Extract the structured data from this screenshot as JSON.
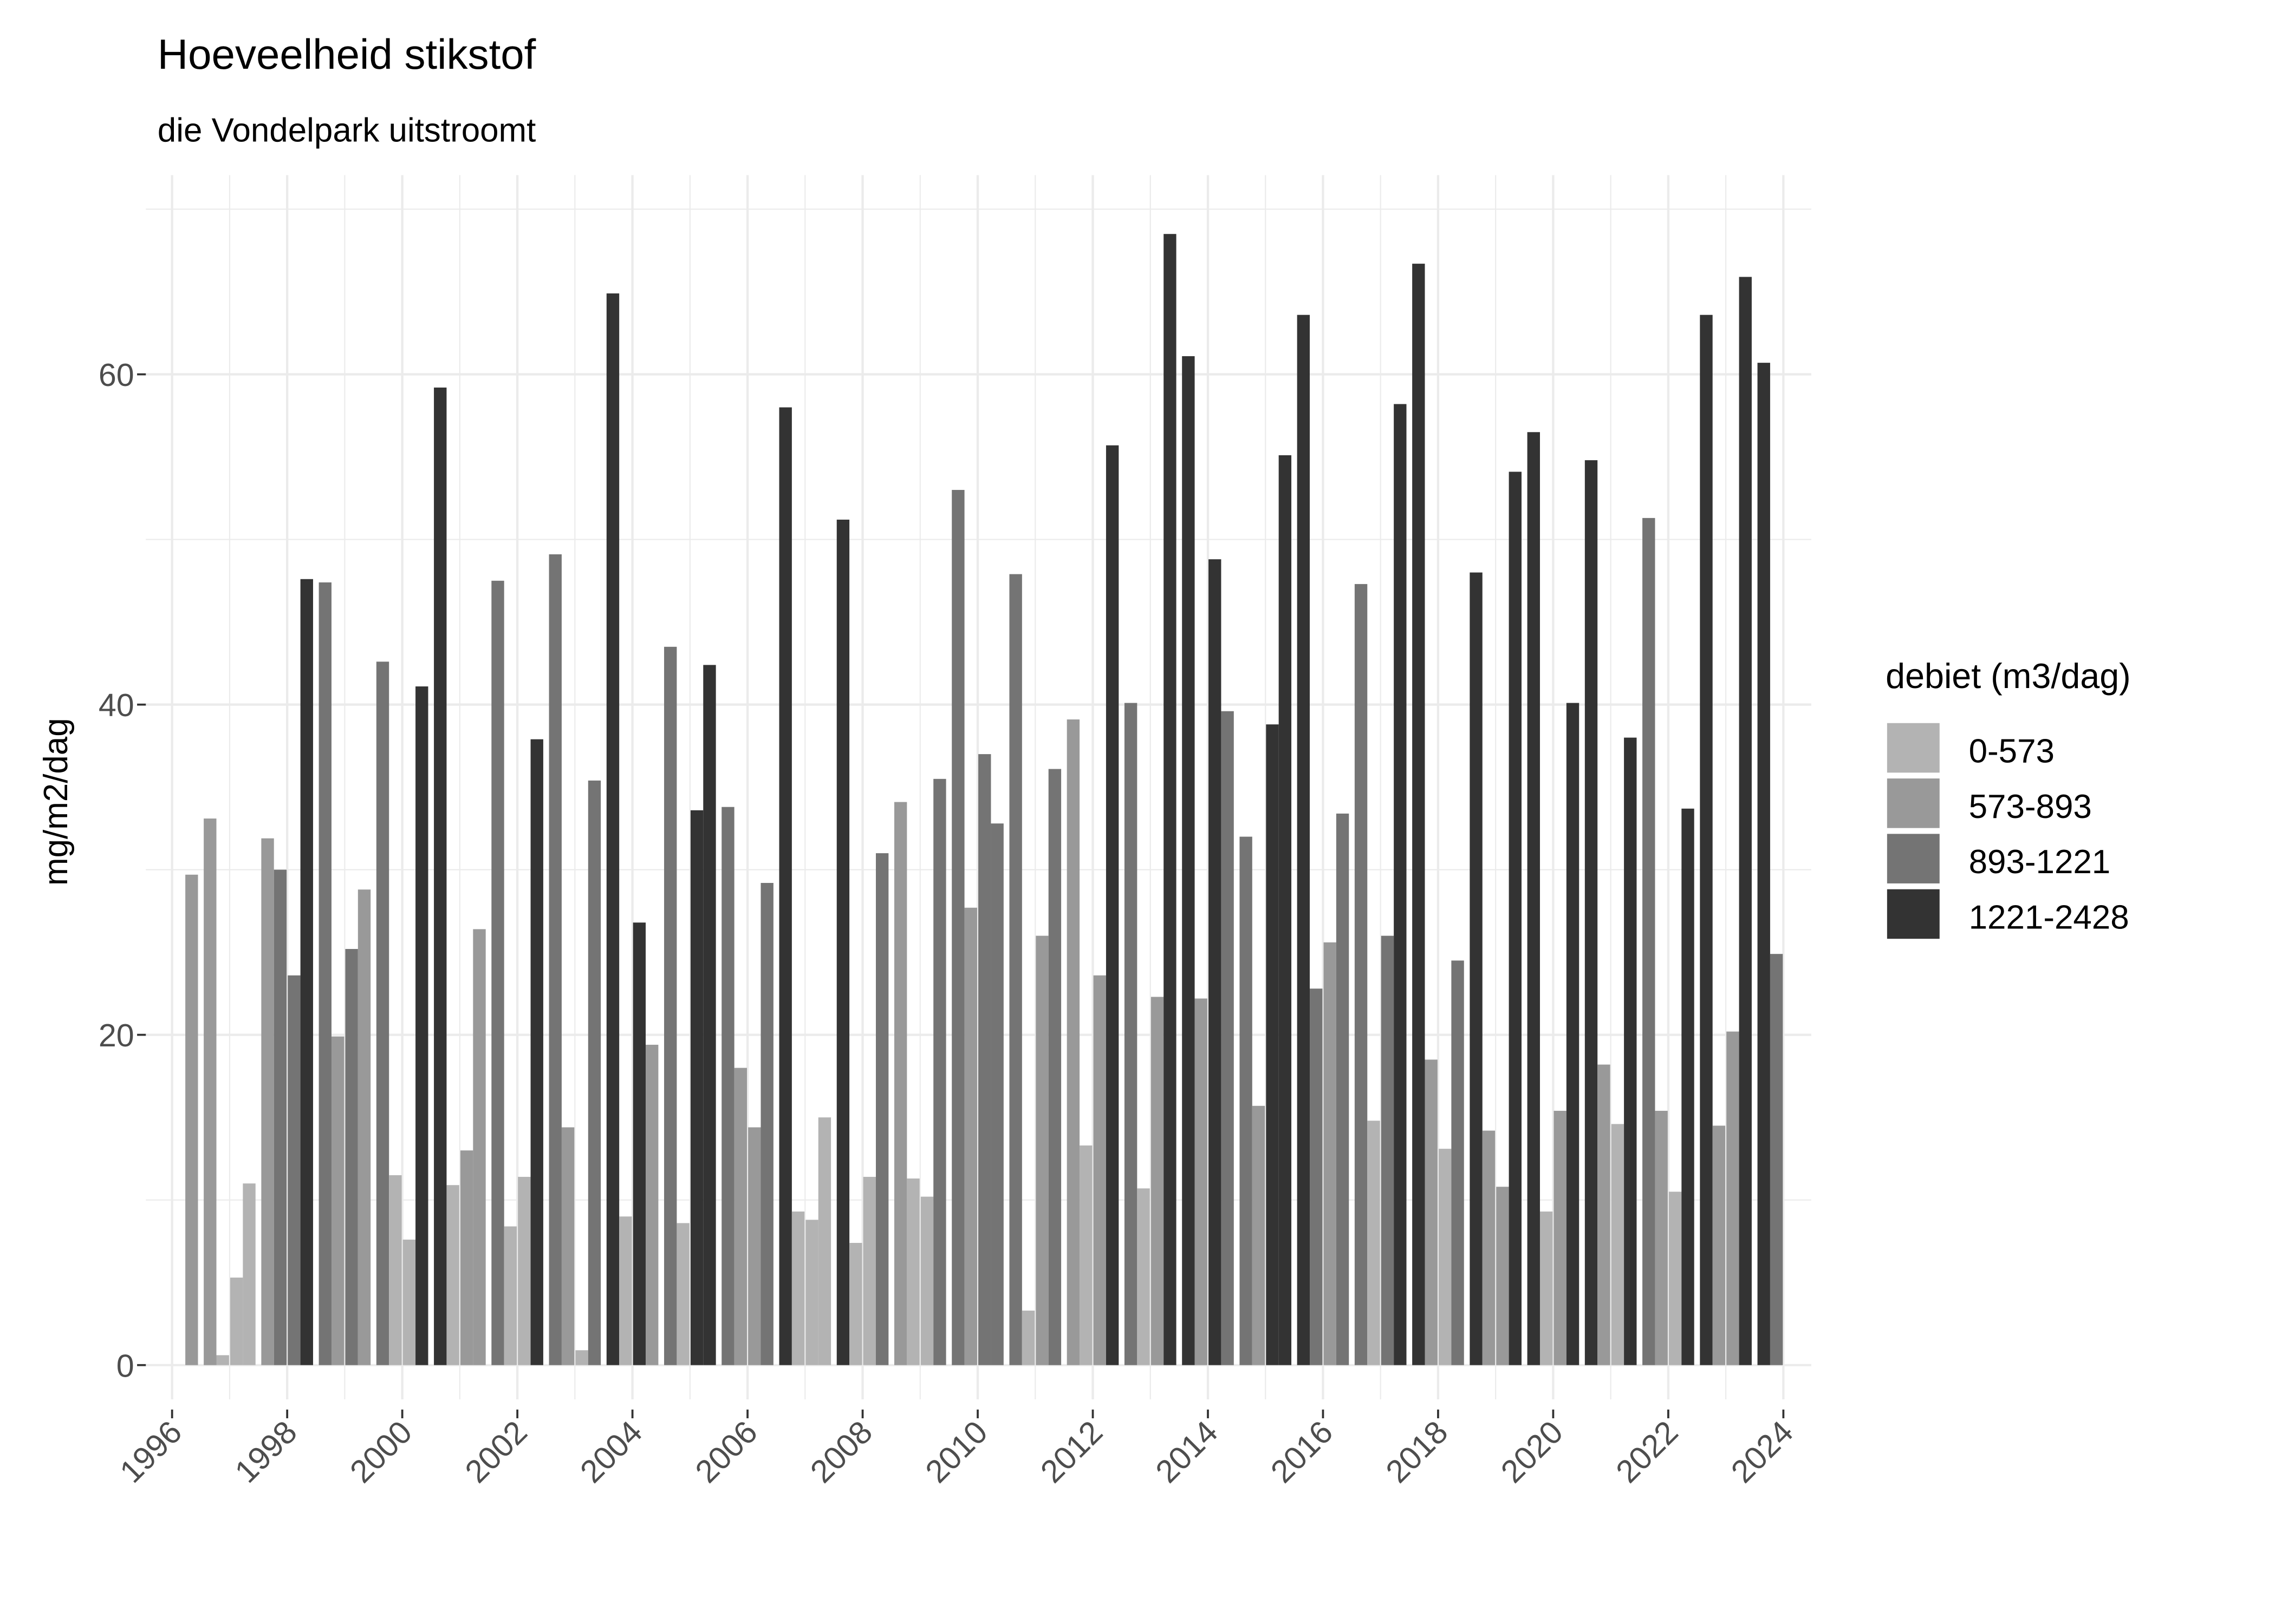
{
  "chart_data": {
    "type": "bar",
    "title": "Hoeveelheid stikstof",
    "subtitle": "die Vondelpark uitstroomt",
    "xlabel": "",
    "ylabel": "mg/m2/dag",
    "xlim": [
      1995.5,
      2024.3
    ],
    "ylim": [
      -3.4,
      72
    ],
    "x_ticks": [
      1996,
      1998,
      2000,
      2002,
      2004,
      2006,
      2008,
      2010,
      2012,
      2014,
      2016,
      2018,
      2020,
      2022,
      2024
    ],
    "x_tick_labels": [
      "1996",
      "1998",
      "2000",
      "2002",
      "2004",
      "2006",
      "2008",
      "2010",
      "2012",
      "2014",
      "2016",
      "2018",
      "2020",
      "2022",
      "2024"
    ],
    "y_ticks": [
      0,
      20,
      40,
      60
    ],
    "y_tick_labels": [
      "0",
      "20",
      "40",
      "60"
    ],
    "grid": true,
    "legend": {
      "title": "debiet (m3/dag)",
      "position": "right",
      "entries": [
        {
          "label": "0-573",
          "color": "#B3B3B3"
        },
        {
          "label": "573-893",
          "color": "#999999"
        },
        {
          "label": "893-1221",
          "color": "#747474"
        },
        {
          "label": "1221-2428",
          "color": "#333333"
        }
      ]
    },
    "bar_width_years": 0.22,
    "bars": [
      [
        1996.34,
        29.7,
        "573-893"
      ],
      [
        1996.66,
        33.1,
        "573-893"
      ],
      [
        1996.88,
        0.6,
        "0-573"
      ],
      [
        1997.12,
        5.3,
        "0-573"
      ],
      [
        1997.34,
        11.0,
        "0-573"
      ],
      [
        1997.66,
        31.9,
        "573-893"
      ],
      [
        1997.88,
        30.0,
        "893-1221"
      ],
      [
        1998.12,
        23.6,
        "893-1221"
      ],
      [
        1998.34,
        47.6,
        "1221-2428"
      ],
      [
        1998.66,
        47.4,
        "893-1221"
      ],
      [
        1998.88,
        19.9,
        "573-893"
      ],
      [
        1999.12,
        25.2,
        "893-1221"
      ],
      [
        1999.34,
        28.8,
        "573-893"
      ],
      [
        1999.66,
        42.6,
        "893-1221"
      ],
      [
        1999.88,
        11.5,
        "0-573"
      ],
      [
        2000.12,
        7.6,
        "0-573"
      ],
      [
        2000.34,
        41.1,
        "1221-2428"
      ],
      [
        2000.66,
        59.2,
        "1221-2428"
      ],
      [
        2000.88,
        10.9,
        "0-573"
      ],
      [
        2001.12,
        13.0,
        "573-893"
      ],
      [
        2001.34,
        26.4,
        "573-893"
      ],
      [
        2001.66,
        47.5,
        "893-1221"
      ],
      [
        2001.88,
        8.4,
        "0-573"
      ],
      [
        2002.12,
        11.4,
        "0-573"
      ],
      [
        2002.34,
        37.9,
        "1221-2428"
      ],
      [
        2002.66,
        49.1,
        "893-1221"
      ],
      [
        2002.88,
        14.4,
        "573-893"
      ],
      [
        2003.12,
        0.9,
        "0-573"
      ],
      [
        2003.34,
        35.4,
        "893-1221"
      ],
      [
        2003.66,
        64.9,
        "1221-2428"
      ],
      [
        2003.88,
        9.0,
        "0-573"
      ],
      [
        2004.12,
        26.8,
        "1221-2428"
      ],
      [
        2004.34,
        19.4,
        "573-893"
      ],
      [
        2004.66,
        43.5,
        "893-1221"
      ],
      [
        2004.88,
        8.6,
        "0-573"
      ],
      [
        2005.12,
        33.6,
        "1221-2428"
      ],
      [
        2005.34,
        42.4,
        "1221-2428"
      ],
      [
        2005.66,
        33.8,
        "893-1221"
      ],
      [
        2005.88,
        18.0,
        "573-893"
      ],
      [
        2006.12,
        14.4,
        "573-893"
      ],
      [
        2006.34,
        29.2,
        "893-1221"
      ],
      [
        2006.66,
        58.0,
        "1221-2428"
      ],
      [
        2006.88,
        9.3,
        "0-573"
      ],
      [
        2007.12,
        8.8,
        "0-573"
      ],
      [
        2007.34,
        15.0,
        "0-573"
      ],
      [
        2007.66,
        51.2,
        "1221-2428"
      ],
      [
        2007.88,
        7.4,
        "0-573"
      ],
      [
        2008.12,
        11.4,
        "0-573"
      ],
      [
        2008.34,
        31.0,
        "893-1221"
      ],
      [
        2008.66,
        34.1,
        "573-893"
      ],
      [
        2008.88,
        11.3,
        "0-573"
      ],
      [
        2009.12,
        10.2,
        "0-573"
      ],
      [
        2009.34,
        35.5,
        "893-1221"
      ],
      [
        2009.66,
        53.0,
        "893-1221"
      ],
      [
        2009.88,
        27.7,
        "573-893"
      ],
      [
        2010.12,
        37.0,
        "893-1221"
      ],
      [
        2010.34,
        32.8,
        "893-1221"
      ],
      [
        2010.66,
        47.9,
        "893-1221"
      ],
      [
        2010.88,
        3.3,
        "0-573"
      ],
      [
        2011.12,
        26.0,
        "573-893"
      ],
      [
        2011.34,
        36.1,
        "893-1221"
      ],
      [
        2011.66,
        39.1,
        "573-893"
      ],
      [
        2011.88,
        13.3,
        "0-573"
      ],
      [
        2012.12,
        23.6,
        "573-893"
      ],
      [
        2012.34,
        55.7,
        "1221-2428"
      ],
      [
        2012.66,
        40.1,
        "893-1221"
      ],
      [
        2012.88,
        10.7,
        "0-573"
      ],
      [
        2013.12,
        22.3,
        "573-893"
      ],
      [
        2013.34,
        68.5,
        "1221-2428"
      ],
      [
        2013.66,
        61.1,
        "1221-2428"
      ],
      [
        2013.88,
        22.2,
        "573-893"
      ],
      [
        2014.12,
        48.8,
        "1221-2428"
      ],
      [
        2014.34,
        39.6,
        "893-1221"
      ],
      [
        2014.66,
        32.0,
        "893-1221"
      ],
      [
        2014.88,
        15.7,
        "573-893"
      ],
      [
        2015.12,
        38.8,
        "1221-2428"
      ],
      [
        2015.34,
        55.1,
        "1221-2428"
      ],
      [
        2015.66,
        63.6,
        "1221-2428"
      ],
      [
        2015.88,
        22.8,
        "893-1221"
      ],
      [
        2016.12,
        25.6,
        "573-893"
      ],
      [
        2016.34,
        33.4,
        "893-1221"
      ],
      [
        2016.66,
        47.3,
        "893-1221"
      ],
      [
        2016.88,
        14.8,
        "0-573"
      ],
      [
        2017.12,
        26.0,
        "893-1221"
      ],
      [
        2017.34,
        58.2,
        "1221-2428"
      ],
      [
        2017.66,
        66.7,
        "1221-2428"
      ],
      [
        2017.88,
        18.5,
        "573-893"
      ],
      [
        2018.12,
        13.1,
        "0-573"
      ],
      [
        2018.34,
        24.5,
        "893-1221"
      ],
      [
        2018.66,
        48.0,
        "1221-2428"
      ],
      [
        2018.88,
        14.2,
        "573-893"
      ],
      [
        2019.12,
        10.8,
        "573-893"
      ],
      [
        2019.34,
        54.1,
        "1221-2428"
      ],
      [
        2019.66,
        56.5,
        "1221-2428"
      ],
      [
        2019.88,
        9.3,
        "0-573"
      ],
      [
        2020.12,
        15.4,
        "573-893"
      ],
      [
        2020.34,
        40.1,
        "1221-2428"
      ],
      [
        2020.66,
        54.8,
        "1221-2428"
      ],
      [
        2020.88,
        18.2,
        "573-893"
      ],
      [
        2021.12,
        14.6,
        "0-573"
      ],
      [
        2021.34,
        38.0,
        "1221-2428"
      ],
      [
        2021.66,
        51.3,
        "893-1221"
      ],
      [
        2021.88,
        15.4,
        "573-893"
      ],
      [
        2022.12,
        10.5,
        "0-573"
      ],
      [
        2022.34,
        33.7,
        "1221-2428"
      ],
      [
        2022.66,
        63.6,
        "1221-2428"
      ],
      [
        2022.88,
        14.5,
        "573-893"
      ],
      [
        2023.12,
        20.2,
        "573-893"
      ],
      [
        2023.34,
        65.9,
        "1221-2428"
      ],
      [
        2023.66,
        60.7,
        "1221-2428"
      ],
      [
        2023.88,
        24.9,
        "893-1221"
      ]
    ]
  }
}
